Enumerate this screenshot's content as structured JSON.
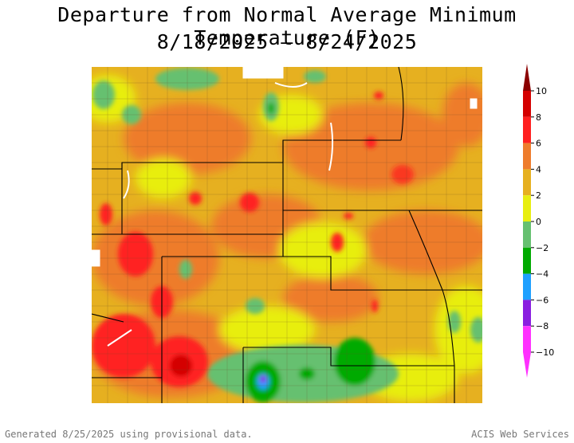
{
  "title_line1": "Departure from Normal Average Minimum Temperature (F)",
  "title_line2": "8/18/2025 – 8/24/2025",
  "legend": {
    "ticks": [
      "10",
      "8",
      "6",
      "4",
      "2",
      "0",
      "−2",
      "−4",
      "−6",
      "−8",
      "−10"
    ],
    "colors": [
      "#8b0000",
      "#d40000",
      "#ff2020",
      "#ee7c2c",
      "#e6b020",
      "#e8ee10",
      "#66c070",
      "#00aa00",
      "#1ea0ff",
      "#8a1ee0",
      "#ff30ff"
    ]
  },
  "footer": {
    "left": "Generated 8/25/2025 using provisional data.",
    "right": "ACIS Web Services"
  }
}
